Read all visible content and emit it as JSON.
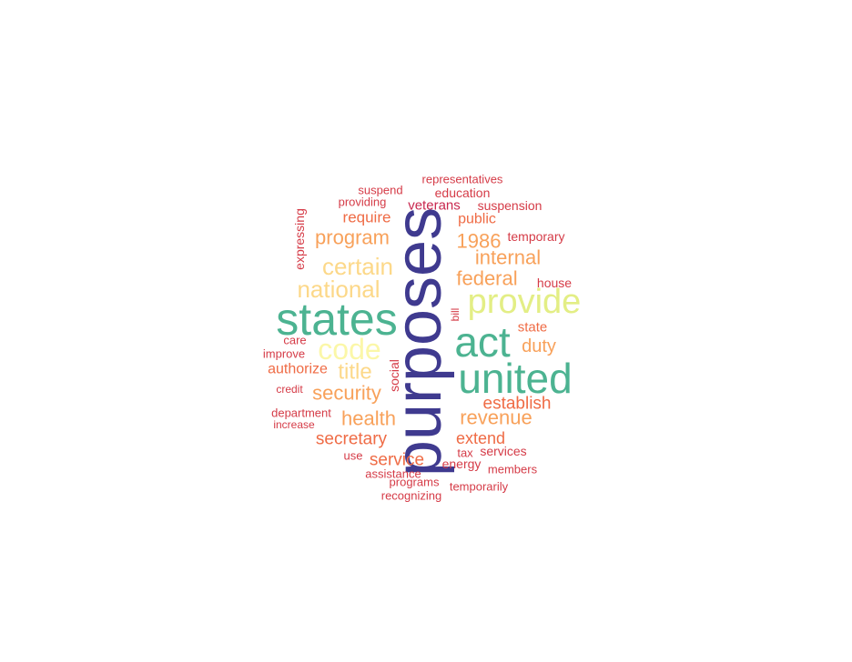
{
  "words": [
    {
      "text": "purposes",
      "color": "#3F3A8F"
    },
    {
      "text": "states",
      "color": "#4CB391"
    },
    {
      "text": "united",
      "color": "#4CB391"
    },
    {
      "text": "act",
      "color": "#4CB391"
    },
    {
      "text": "provide",
      "color": "#E3EE85"
    },
    {
      "text": "code",
      "color": "#FBF7A8"
    },
    {
      "text": "certain",
      "color": "#FCD889"
    },
    {
      "text": "national",
      "color": "#FCD889"
    },
    {
      "text": "title",
      "color": "#FCD889"
    },
    {
      "text": "program",
      "color": "#F8A15A"
    },
    {
      "text": "security",
      "color": "#F8A15A"
    },
    {
      "text": "health",
      "color": "#F8A15A"
    },
    {
      "text": "revenue",
      "color": "#F8A15A"
    },
    {
      "text": "federal",
      "color": "#F8A15A"
    },
    {
      "text": "internal",
      "color": "#F8A15A"
    },
    {
      "text": "1986",
      "color": "#F8A15A"
    },
    {
      "text": "duty",
      "color": "#F8A15A"
    },
    {
      "text": "establish",
      "color": "#EF6B45"
    },
    {
      "text": "secretary",
      "color": "#EF6B45"
    },
    {
      "text": "service",
      "color": "#EF6B45"
    },
    {
      "text": "extend",
      "color": "#EF6B45"
    },
    {
      "text": "require",
      "color": "#EF6B45"
    },
    {
      "text": "authorize",
      "color": "#EF6B45"
    },
    {
      "text": "public",
      "color": "#EF6B45"
    },
    {
      "text": "state",
      "color": "#EF6B45"
    },
    {
      "text": "veterans",
      "color": "#C8274E"
    },
    {
      "text": "education",
      "color": "#D53B47"
    },
    {
      "text": "representatives",
      "color": "#D53B47"
    },
    {
      "text": "suspend",
      "color": "#D53B47"
    },
    {
      "text": "providing",
      "color": "#D53B47"
    },
    {
      "text": "suspension",
      "color": "#D53B47"
    },
    {
      "text": "temporary",
      "color": "#D53B47"
    },
    {
      "text": "house",
      "color": "#D53B47"
    },
    {
      "text": "expressing",
      "color": "#D53B47"
    },
    {
      "text": "bill",
      "color": "#D53B47"
    },
    {
      "text": "care",
      "color": "#D53B47"
    },
    {
      "text": "improve",
      "color": "#D53B47"
    },
    {
      "text": "social",
      "color": "#D53B47"
    },
    {
      "text": "credit",
      "color": "#D53B47"
    },
    {
      "text": "department",
      "color": "#D53B47"
    },
    {
      "text": "increase",
      "color": "#D53B47"
    },
    {
      "text": "use",
      "color": "#D53B47"
    },
    {
      "text": "tax",
      "color": "#D53B47"
    },
    {
      "text": "services",
      "color": "#D53B47"
    },
    {
      "text": "energy",
      "color": "#D53B47"
    },
    {
      "text": "members",
      "color": "#D53B47"
    },
    {
      "text": "assistance",
      "color": "#D53B47"
    },
    {
      "text": "programs",
      "color": "#D53B47"
    },
    {
      "text": "temporarily",
      "color": "#D53B47"
    },
    {
      "text": "recognizing",
      "color": "#D53B47"
    }
  ]
}
